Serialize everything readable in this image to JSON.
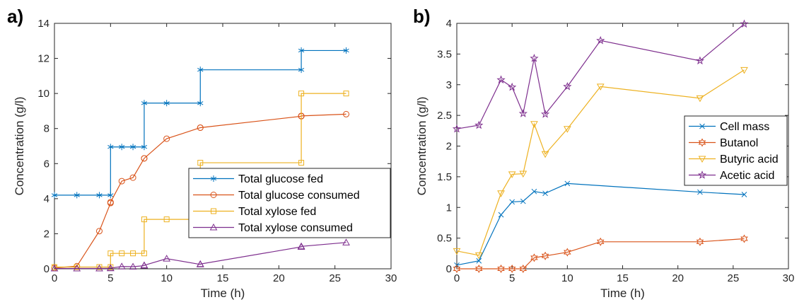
{
  "chart_data": [
    {
      "type": "line",
      "panel_label": "a)",
      "title": "",
      "xlabel": "Time (h)",
      "ylabel": "Concentration (g/l)",
      "xlim": [
        0,
        30
      ],
      "ylim": [
        0,
        14
      ],
      "xticks": [
        0,
        5,
        10,
        15,
        20,
        25,
        30
      ],
      "yticks": [
        0,
        2,
        4,
        6,
        8,
        10,
        12,
        14
      ],
      "grid": false,
      "legend_position": "center-right",
      "series": [
        {
          "name": "Total glucose fed",
          "color": "#0072BD",
          "marker": "asterisk",
          "style": "step",
          "points": [
            [
              0,
              4.2
            ],
            [
              2,
              4.2
            ],
            [
              4,
              4.2
            ],
            [
              5,
              4.2
            ],
            [
              5,
              6.95
            ],
            [
              6,
              6.95
            ],
            [
              7,
              6.95
            ],
            [
              8,
              6.95
            ],
            [
              8,
              9.45
            ],
            [
              10,
              9.45
            ],
            [
              13,
              9.45
            ],
            [
              13,
              11.35
            ],
            [
              22,
              11.35
            ],
            [
              22,
              12.45
            ],
            [
              26,
              12.45
            ]
          ],
          "marker_points": [
            [
              0,
              4.2
            ],
            [
              2,
              4.2
            ],
            [
              4,
              4.2
            ],
            [
              5,
              4.2
            ],
            [
              5,
              6.95
            ],
            [
              6,
              6.95
            ],
            [
              7,
              6.95
            ],
            [
              8,
              6.95
            ],
            [
              8,
              9.45
            ],
            [
              10,
              9.45
            ],
            [
              13,
              9.45
            ],
            [
              13,
              11.35
            ],
            [
              22,
              11.35
            ],
            [
              22,
              12.45
            ],
            [
              26,
              12.45
            ]
          ]
        },
        {
          "name": "Total glucose consumed",
          "color": "#D95319",
          "marker": "circle",
          "style": "line",
          "points": [
            [
              0,
              0.05
            ],
            [
              2,
              0.15
            ],
            [
              4,
              2.15
            ],
            [
              5,
              3.75
            ],
            [
              5,
              3.8
            ],
            [
              6,
              5.0
            ],
            [
              7,
              5.2
            ],
            [
              8,
              6.3
            ],
            [
              8,
              6.3
            ],
            [
              10,
              7.42
            ],
            [
              13,
              8.05
            ],
            [
              13,
              8.05
            ],
            [
              22,
              8.7
            ],
            [
              22,
              8.72
            ],
            [
              26,
              8.82
            ]
          ],
          "marker_points": [
            [
              0,
              0.05
            ],
            [
              2,
              0.15
            ],
            [
              4,
              2.15
            ],
            [
              5,
              3.75
            ],
            [
              5,
              3.8
            ],
            [
              6,
              5.0
            ],
            [
              7,
              5.2
            ],
            [
              8,
              6.3
            ],
            [
              8,
              6.3
            ],
            [
              10,
              7.42
            ],
            [
              13,
              8.05
            ],
            [
              13,
              8.05
            ],
            [
              22,
              8.7
            ],
            [
              22,
              8.72
            ],
            [
              26,
              8.82
            ]
          ]
        },
        {
          "name": "Total xylose fed",
          "color": "#EDB120",
          "marker": "square",
          "style": "step",
          "points": [
            [
              0,
              0.1
            ],
            [
              2,
              0.1
            ],
            [
              4,
              0.1
            ],
            [
              5,
              0.1
            ],
            [
              5,
              0.88
            ],
            [
              6,
              0.88
            ],
            [
              7,
              0.88
            ],
            [
              8,
              0.88
            ],
            [
              8,
              2.82
            ],
            [
              10,
              2.82
            ],
            [
              13,
              2.82
            ],
            [
              13,
              6.05
            ],
            [
              22,
              6.05
            ],
            [
              22,
              10.0
            ],
            [
              26,
              10.0
            ]
          ],
          "marker_points": [
            [
              0,
              0.1
            ],
            [
              2,
              0.1
            ],
            [
              4,
              0.1
            ],
            [
              5,
              0.1
            ],
            [
              5,
              0.88
            ],
            [
              6,
              0.88
            ],
            [
              7,
              0.88
            ],
            [
              8,
              0.88
            ],
            [
              8,
              2.82
            ],
            [
              10,
              2.82
            ],
            [
              13,
              2.82
            ],
            [
              13,
              6.05
            ],
            [
              22,
              6.05
            ],
            [
              22,
              10.0
            ],
            [
              26,
              10.0
            ]
          ]
        },
        {
          "name": "Total xylose consumed",
          "color": "#7E2F8E",
          "marker": "triangle-up",
          "style": "line",
          "points": [
            [
              0,
              0.02
            ],
            [
              2,
              0.02
            ],
            [
              4,
              0.02
            ],
            [
              5,
              0.03
            ],
            [
              5,
              0.04
            ],
            [
              6,
              0.13
            ],
            [
              7,
              0.12
            ],
            [
              8,
              0.18
            ],
            [
              8,
              0.2
            ],
            [
              10,
              0.58
            ],
            [
              13,
              0.25
            ],
            [
              13,
              0.27
            ],
            [
              22,
              1.25
            ],
            [
              22,
              1.28
            ],
            [
              26,
              1.5
            ]
          ],
          "marker_points": [
            [
              0,
              0.02
            ],
            [
              2,
              0.02
            ],
            [
              4,
              0.02
            ],
            [
              5,
              0.03
            ],
            [
              5,
              0.04
            ],
            [
              6,
              0.13
            ],
            [
              7,
              0.12
            ],
            [
              8,
              0.18
            ],
            [
              8,
              0.2
            ],
            [
              10,
              0.58
            ],
            [
              13,
              0.25
            ],
            [
              13,
              0.27
            ],
            [
              22,
              1.25
            ],
            [
              22,
              1.28
            ],
            [
              26,
              1.5
            ]
          ]
        }
      ]
    },
    {
      "type": "line",
      "panel_label": "b)",
      "title": "",
      "xlabel": "Time (h)",
      "ylabel": "Concentration (g/l)",
      "xlim": [
        0,
        30
      ],
      "ylim": [
        0,
        4
      ],
      "xticks": [
        0,
        5,
        10,
        15,
        20,
        25,
        30
      ],
      "yticks": [
        0,
        0.5,
        1,
        1.5,
        2,
        2.5,
        3,
        3.5,
        4
      ],
      "grid": false,
      "legend_position": "center-right",
      "series": [
        {
          "name": "Cell mass",
          "color": "#0072BD",
          "marker": "x",
          "style": "line",
          "points": [
            [
              0,
              0.06
            ],
            [
              2,
              0.13
            ],
            [
              4,
              0.88
            ],
            [
              5,
              1.09
            ],
            [
              6,
              1.1
            ],
            [
              7,
              1.26
            ],
            [
              8,
              1.23
            ],
            [
              10,
              1.39
            ],
            [
              22,
              1.25
            ],
            [
              26,
              1.21
            ]
          ],
          "marker_points": [
            [
              0,
              0.06
            ],
            [
              2,
              0.13
            ],
            [
              4,
              0.88
            ],
            [
              5,
              1.09
            ],
            [
              6,
              1.1
            ],
            [
              7,
              1.26
            ],
            [
              8,
              1.23
            ],
            [
              10,
              1.39
            ],
            [
              22,
              1.25
            ],
            [
              26,
              1.21
            ]
          ]
        },
        {
          "name": "Butanol",
          "color": "#D95319",
          "marker": "hexagram",
          "style": "line",
          "points": [
            [
              0,
              0.0
            ],
            [
              2,
              0.0
            ],
            [
              4,
              0.0
            ],
            [
              5,
              0.0
            ],
            [
              6,
              0.0
            ],
            [
              7,
              0.18
            ],
            [
              8,
              0.21
            ],
            [
              10,
              0.27
            ],
            [
              13,
              0.44
            ],
            [
              22,
              0.44
            ],
            [
              26,
              0.49
            ]
          ],
          "marker_points": [
            [
              0,
              0.0
            ],
            [
              2,
              0.0
            ],
            [
              4,
              0.0
            ],
            [
              5,
              0.0
            ],
            [
              6,
              0.0
            ],
            [
              7,
              0.18
            ],
            [
              8,
              0.21
            ],
            [
              10,
              0.27
            ],
            [
              13,
              0.44
            ],
            [
              22,
              0.44
            ],
            [
              26,
              0.49
            ]
          ]
        },
        {
          "name": "Butyric acid",
          "color": "#EDB120",
          "marker": "triangle-down",
          "style": "line",
          "points": [
            [
              0,
              0.29
            ],
            [
              2,
              0.22
            ],
            [
              4,
              1.23
            ],
            [
              5,
              1.54
            ],
            [
              6,
              1.55
            ],
            [
              7,
              2.36
            ],
            [
              8,
              1.87
            ],
            [
              10,
              2.28
            ],
            [
              13,
              2.97
            ],
            [
              22,
              2.78
            ],
            [
              26,
              3.24
            ]
          ],
          "marker_points": [
            [
              0,
              0.29
            ],
            [
              2,
              0.22
            ],
            [
              4,
              1.23
            ],
            [
              5,
              1.54
            ],
            [
              6,
              1.55
            ],
            [
              7,
              2.36
            ],
            [
              8,
              1.87
            ],
            [
              10,
              2.28
            ],
            [
              13,
              2.97
            ],
            [
              22,
              2.78
            ],
            [
              26,
              3.24
            ]
          ]
        },
        {
          "name": "Acetic acid",
          "color": "#7E2F8E",
          "marker": "pentagram",
          "style": "line",
          "points": [
            [
              0,
              2.28
            ],
            [
              2,
              2.34
            ],
            [
              4,
              3.08
            ],
            [
              5,
              2.96
            ],
            [
              6,
              2.53
            ],
            [
              7,
              3.43
            ],
            [
              8,
              2.52
            ],
            [
              10,
              2.97
            ],
            [
              13,
              3.72
            ],
            [
              22,
              3.39
            ],
            [
              26,
              3.99
            ]
          ],
          "marker_points": [
            [
              0,
              2.28
            ],
            [
              2,
              2.34
            ],
            [
              4,
              3.08
            ],
            [
              5,
              2.96
            ],
            [
              6,
              2.53
            ],
            [
              7,
              3.43
            ],
            [
              8,
              2.52
            ],
            [
              10,
              2.97
            ],
            [
              13,
              3.72
            ],
            [
              22,
              3.39
            ],
            [
              26,
              3.99
            ]
          ]
        }
      ]
    }
  ]
}
